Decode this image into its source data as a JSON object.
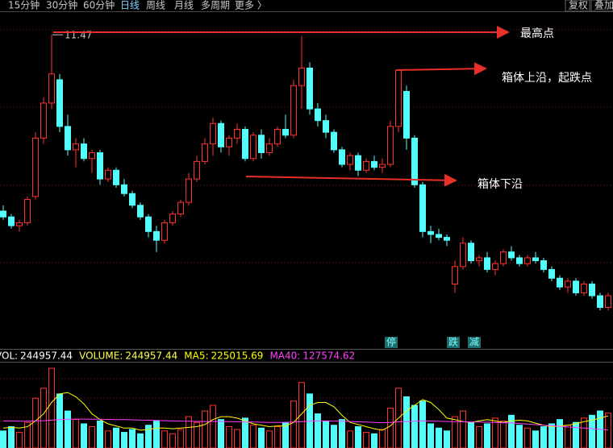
{
  "toolbar": {
    "tabs": [
      "15分钟",
      "30分钟",
      "60分钟",
      "日线",
      "周线",
      "月线",
      "多周期",
      "更多 〉"
    ],
    "right": [
      "复权",
      "叠加"
    ]
  },
  "chart_data": [
    {
      "type": "candlestick",
      "ylim": [
        6.2,
        11.9
      ],
      "up_color": "#ff3232",
      "down_color": "#54fcfc",
      "candles": [
        [
          8.45,
          8.55,
          8.3,
          8.35
        ],
        [
          8.35,
          8.4,
          8.15,
          8.2
        ],
        [
          8.2,
          8.3,
          8.1,
          8.25
        ],
        [
          8.25,
          8.7,
          8.2,
          8.65
        ],
        [
          8.7,
          9.8,
          8.65,
          9.7
        ],
        [
          9.7,
          10.4,
          9.6,
          10.3
        ],
        [
          10.3,
          11.47,
          10.2,
          10.8
        ],
        [
          10.7,
          10.8,
          9.8,
          9.9
        ],
        [
          9.9,
          10.1,
          9.4,
          9.5
        ],
        [
          9.5,
          9.7,
          9.2,
          9.6
        ],
        [
          9.6,
          9.7,
          9.3,
          9.35
        ],
        [
          9.35,
          9.5,
          9.1,
          9.45
        ],
        [
          9.45,
          9.5,
          8.9,
          9.0
        ],
        [
          9.0,
          9.2,
          8.95,
          9.15
        ],
        [
          9.15,
          9.2,
          8.85,
          8.9
        ],
        [
          8.9,
          9.0,
          8.7,
          8.75
        ],
        [
          8.75,
          8.8,
          8.5,
          8.55
        ],
        [
          8.55,
          8.6,
          8.3,
          8.35
        ],
        [
          8.35,
          8.4,
          8.0,
          8.1
        ],
        [
          8.1,
          8.2,
          7.75,
          7.95
        ],
        [
          7.95,
          8.3,
          7.9,
          8.25
        ],
        [
          8.25,
          8.45,
          8.2,
          8.4
        ],
        [
          8.4,
          8.65,
          8.35,
          8.6
        ],
        [
          8.6,
          9.1,
          8.55,
          9.0
        ],
        [
          9.0,
          9.4,
          8.95,
          9.3
        ],
        [
          9.3,
          9.7,
          9.25,
          9.6
        ],
        [
          9.6,
          10.05,
          9.4,
          9.95
        ],
        [
          9.95,
          10.0,
          9.45,
          9.55
        ],
        [
          9.55,
          9.75,
          9.4,
          9.7
        ],
        [
          9.7,
          9.95,
          9.6,
          9.85
        ],
        [
          9.85,
          9.9,
          9.3,
          9.35
        ],
        [
          9.35,
          9.8,
          9.3,
          9.75
        ],
        [
          9.75,
          9.85,
          9.35,
          9.45
        ],
        [
          9.45,
          9.7,
          9.4,
          9.6
        ],
        [
          9.6,
          9.9,
          9.55,
          9.85
        ],
        [
          9.85,
          10.1,
          9.7,
          9.75
        ],
        [
          9.75,
          10.7,
          9.7,
          10.6
        ],
        [
          10.6,
          11.45,
          10.2,
          10.9
        ],
        [
          10.9,
          11.0,
          10.1,
          10.2
        ],
        [
          10.2,
          10.3,
          9.9,
          10.0
        ],
        [
          10.0,
          10.1,
          9.7,
          9.8
        ],
        [
          9.8,
          9.85,
          9.45,
          9.5
        ],
        [
          9.5,
          9.55,
          9.2,
          9.25
        ],
        [
          9.25,
          9.45,
          9.15,
          9.4
        ],
        [
          9.4,
          9.45,
          9.05,
          9.15
        ],
        [
          9.15,
          9.35,
          9.1,
          9.3
        ],
        [
          9.3,
          9.4,
          9.15,
          9.2
        ],
        [
          9.2,
          9.35,
          9.1,
          9.25
        ],
        [
          9.25,
          10.0,
          9.2,
          9.9
        ],
        [
          9.9,
          10.86,
          9.8,
          10.86
        ],
        [
          10.5,
          10.6,
          9.5,
          9.7
        ],
        [
          9.7,
          9.75,
          8.85,
          8.9
        ],
        [
          8.9,
          8.95,
          8.0,
          8.1
        ],
        [
          8.1,
          8.2,
          7.9,
          8.05
        ],
        [
          8.05,
          8.15,
          7.95,
          8.0
        ],
        [
          8.0,
          8.05,
          7.85,
          7.95
        ],
        [
          7.2,
          7.6,
          7.05,
          7.5
        ],
        [
          7.5,
          8.0,
          7.45,
          7.9
        ],
        [
          7.9,
          7.95,
          7.55,
          7.6
        ],
        [
          7.6,
          7.7,
          7.5,
          7.65
        ],
        [
          7.65,
          7.75,
          7.4,
          7.45
        ],
        [
          7.45,
          7.6,
          7.35,
          7.55
        ],
        [
          7.55,
          7.8,
          7.5,
          7.75
        ],
        [
          7.75,
          7.85,
          7.6,
          7.65
        ],
        [
          7.65,
          7.7,
          7.5,
          7.55
        ],
        [
          7.55,
          7.7,
          7.5,
          7.65
        ],
        [
          7.65,
          7.75,
          7.55,
          7.6
        ],
        [
          7.6,
          7.65,
          7.4,
          7.45
        ],
        [
          7.45,
          7.5,
          7.25,
          7.3
        ],
        [
          7.3,
          7.35,
          7.1,
          7.15
        ],
        [
          7.15,
          7.3,
          7.05,
          7.25
        ],
        [
          7.25,
          7.3,
          7.0,
          7.05
        ],
        [
          7.05,
          7.25,
          7.0,
          7.2
        ],
        [
          7.2,
          7.25,
          6.95,
          7.0
        ],
        [
          7.0,
          7.05,
          6.75,
          6.8
        ],
        [
          6.8,
          7.05,
          6.75,
          7.0
        ]
      ],
      "annotations": [
        "最高点",
        "箱体上沿，起跌点",
        "箱体下沿"
      ],
      "signals": [
        "停",
        "跌",
        "减"
      ]
    },
    {
      "type": "bar",
      "ylim": [
        0,
        600000
      ],
      "legend": [
        {
          "name": "VOL:",
          "color": "#ffffff"
        },
        {
          "name": "VOLUME:",
          "color": "#ffff54"
        }
      ],
      "values": [
        120000,
        150000,
        110000,
        180000,
        350000,
        420000,
        560000,
        380000,
        260000,
        200000,
        170000,
        150000,
        190000,
        120000,
        140000,
        110000,
        130000,
        100000,
        160000,
        190000,
        120000,
        100000,
        130000,
        220000,
        180000,
        260000,
        300000,
        200000,
        150000,
        130000,
        210000,
        160000,
        140000,
        120000,
        150000,
        180000,
        330000,
        460000,
        380000,
        240000,
        190000,
        160000,
        200000,
        120000,
        150000,
        110000,
        100000,
        130000,
        280000,
        420000,
        360000,
        300000,
        330000,
        170000,
        140000,
        120000,
        220000,
        260000,
        180000,
        150000,
        170000,
        210000,
        190000,
        230000,
        160000,
        140000,
        120000,
        150000,
        170000,
        200000,
        160000,
        180000,
        210000,
        230000,
        260000,
        244957.44
      ],
      "series": [
        {
          "name": "MA5:",
          "color": "#ffff00",
          "values": [
            140000,
            145000,
            140000,
            150000,
            190000,
            240000,
            320000,
            380000,
            390000,
            360000,
            310000,
            240000,
            200000,
            170000,
            155000,
            140000,
            140000,
            125000,
            130000,
            140000,
            140000,
            135000,
            140000,
            145000,
            150000,
            165000,
            200000,
            220000,
            220000,
            210000,
            190000,
            170000,
            160000,
            150000,
            155000,
            155000,
            180000,
            240000,
            300000,
            320000,
            320000,
            290000,
            230000,
            180000,
            165000,
            150000,
            135000,
            125000,
            155000,
            210000,
            260000,
            300000,
            340000,
            320000,
            270000,
            210000,
            200000,
            185000,
            180000,
            190000,
            200000,
            190000,
            180000,
            190000,
            195000,
            190000,
            175000,
            160000,
            150000,
            155000,
            160000,
            170000,
            185000,
            195000,
            210000,
            225015.69
          ]
        },
        {
          "name": "MA40:",
          "color": "#ff40ff",
          "values": [
            190000,
            190000,
            188000,
            188000,
            190000,
            192000,
            196000,
            200000,
            202000,
            203000,
            203000,
            202000,
            202000,
            201000,
            200000,
            199000,
            198000,
            196000,
            195000,
            194000,
            192000,
            190000,
            189000,
            188000,
            187000,
            186000,
            186000,
            186000,
            185000,
            184000,
            183000,
            182000,
            181000,
            180000,
            180000,
            180000,
            182000,
            185000,
            188000,
            190000,
            190000,
            189000,
            188000,
            186000,
            184000,
            182000,
            180000,
            178000,
            180000,
            184000,
            186000,
            188000,
            190000,
            189000,
            188000,
            186000,
            185000,
            184000,
            183000,
            182000,
            181000,
            180000,
            178000,
            176000,
            172000,
            168000,
            164000,
            160000,
            156000,
            152000,
            148000,
            144000,
            140000,
            136000,
            132000,
            127574.62
          ]
        }
      ]
    }
  ]
}
